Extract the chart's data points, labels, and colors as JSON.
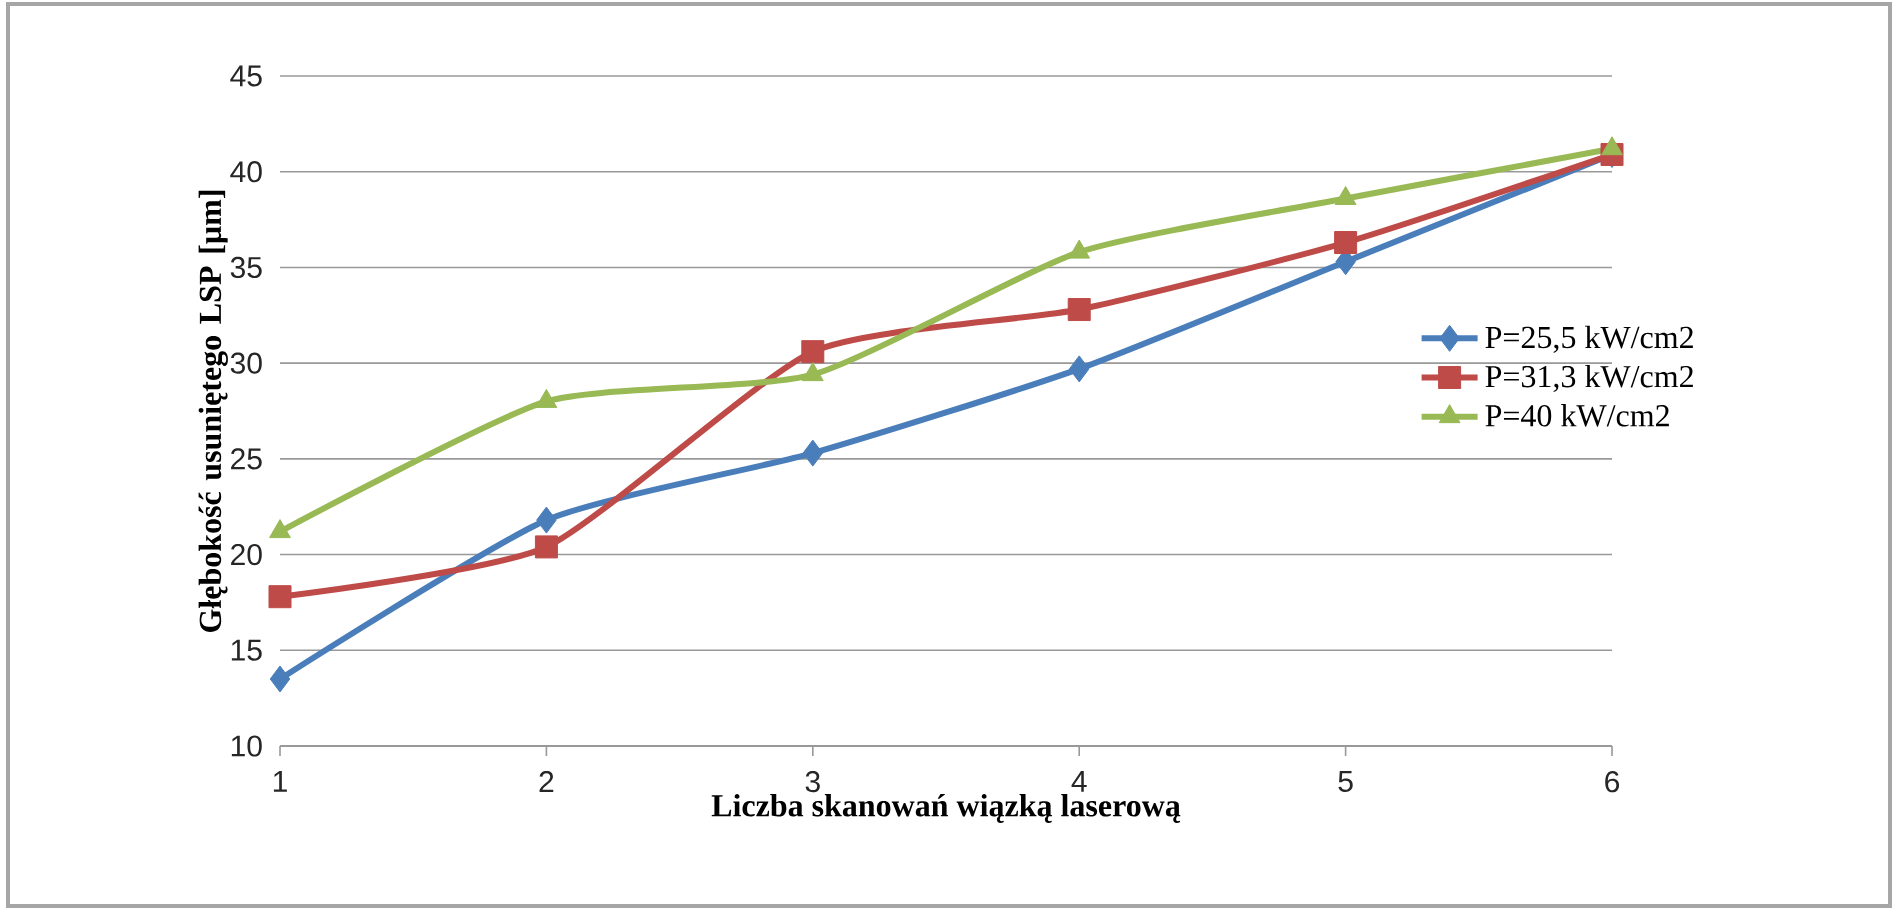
{
  "chart_data": {
    "type": "line",
    "xlabel": "Liczba skanowań wiązką laserową",
    "ylabel": "Głębokość usuniętego LSP [µm]",
    "x": [
      1,
      2,
      3,
      4,
      5,
      6
    ],
    "xlim": [
      1,
      6
    ],
    "xticks": [
      1,
      2,
      3,
      4,
      5,
      6
    ],
    "ylim": [
      10,
      45
    ],
    "yticks": [
      10,
      15,
      20,
      25,
      30,
      35,
      40,
      45
    ],
    "grid": "y",
    "legend": "right",
    "line_style": "solid",
    "series": [
      {
        "name": "P=25,5 kW/cm2",
        "color": "#4a7ebb",
        "marker": "diamond",
        "values": [
          13.5,
          21.8,
          25.3,
          29.7,
          35.3,
          40.9
        ]
      },
      {
        "name": "P=31,3 kW/cm2",
        "color": "#be4b48",
        "marker": "square",
        "values": [
          17.8,
          20.4,
          30.6,
          32.8,
          36.3,
          40.9
        ]
      },
      {
        "name": "P=40 kW/cm2",
        "color": "#98b954",
        "marker": "triangle",
        "values": [
          21.2,
          28.0,
          29.4,
          35.8,
          38.6,
          41.2
        ]
      }
    ]
  }
}
